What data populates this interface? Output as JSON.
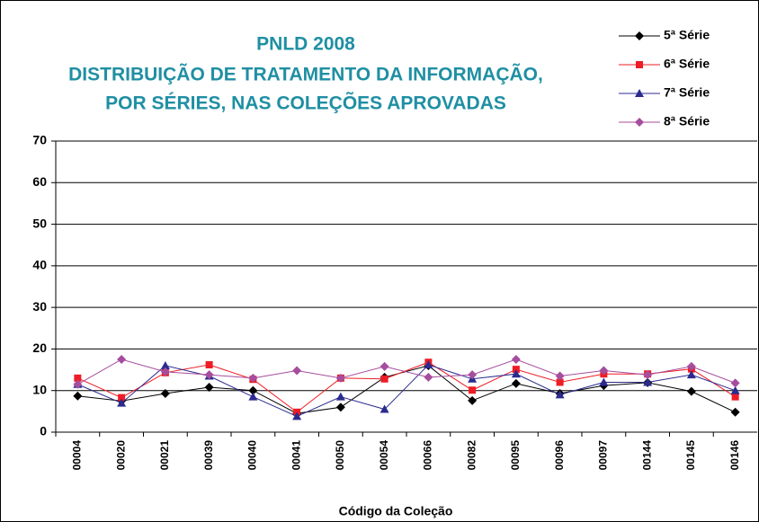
{
  "chart_data": {
    "type": "line",
    "title": [
      "PNLD 2008",
      "DISTRIBUIÇÃO DE TRATAMENTO DA INFORMAÇÃO,",
      "POR SÉRIES, NAS COLEÇÕES APROVADAS"
    ],
    "x_label": "Código da Coleção",
    "categories": [
      "00004",
      "00020",
      "00021",
      "00039",
      "00040",
      "00041",
      "00050",
      "00054",
      "00066",
      "00082",
      "00095",
      "00096",
      "00097",
      "00144",
      "00145",
      "00146"
    ],
    "series": [
      {
        "name": "5ª Série",
        "color": "#000000",
        "marker": "diamond",
        "values": [
          8.7,
          7.5,
          9.3,
          10.8,
          10,
          4.5,
          6,
          13.2,
          16,
          7.6,
          11.7,
          9.3,
          11.2,
          11.9,
          9.8,
          4.8
        ]
      },
      {
        "name": "6ª Série",
        "color": "#ee1c25",
        "marker": "square",
        "values": [
          13,
          8.3,
          14.3,
          16.2,
          12.7,
          4.8,
          13,
          12.8,
          16.8,
          10.1,
          15.1,
          12,
          14,
          14,
          15.2,
          8.5
        ]
      },
      {
        "name": "7ª Série",
        "color": "#2b2b8f",
        "marker": "triangle",
        "values": [
          11.5,
          7,
          16,
          13.5,
          8.5,
          3.8,
          8.5,
          5.5,
          16.2,
          12.8,
          14,
          9,
          12,
          12,
          13.8,
          10
        ]
      },
      {
        "name": "8ª Série",
        "color": "#a64d9e",
        "marker": "diamond",
        "values": [
          11.5,
          17.5,
          14.5,
          13.8,
          13,
          14.8,
          13,
          15.8,
          13.2,
          13.8,
          17.5,
          13.5,
          14.8,
          13.8,
          15.8,
          11.8
        ]
      }
    ],
    "ylim": [
      0,
      70
    ],
    "yticks": [
      0,
      10,
      20,
      30,
      40,
      50,
      60,
      70
    ],
    "grid": true,
    "legend": "top-right"
  }
}
